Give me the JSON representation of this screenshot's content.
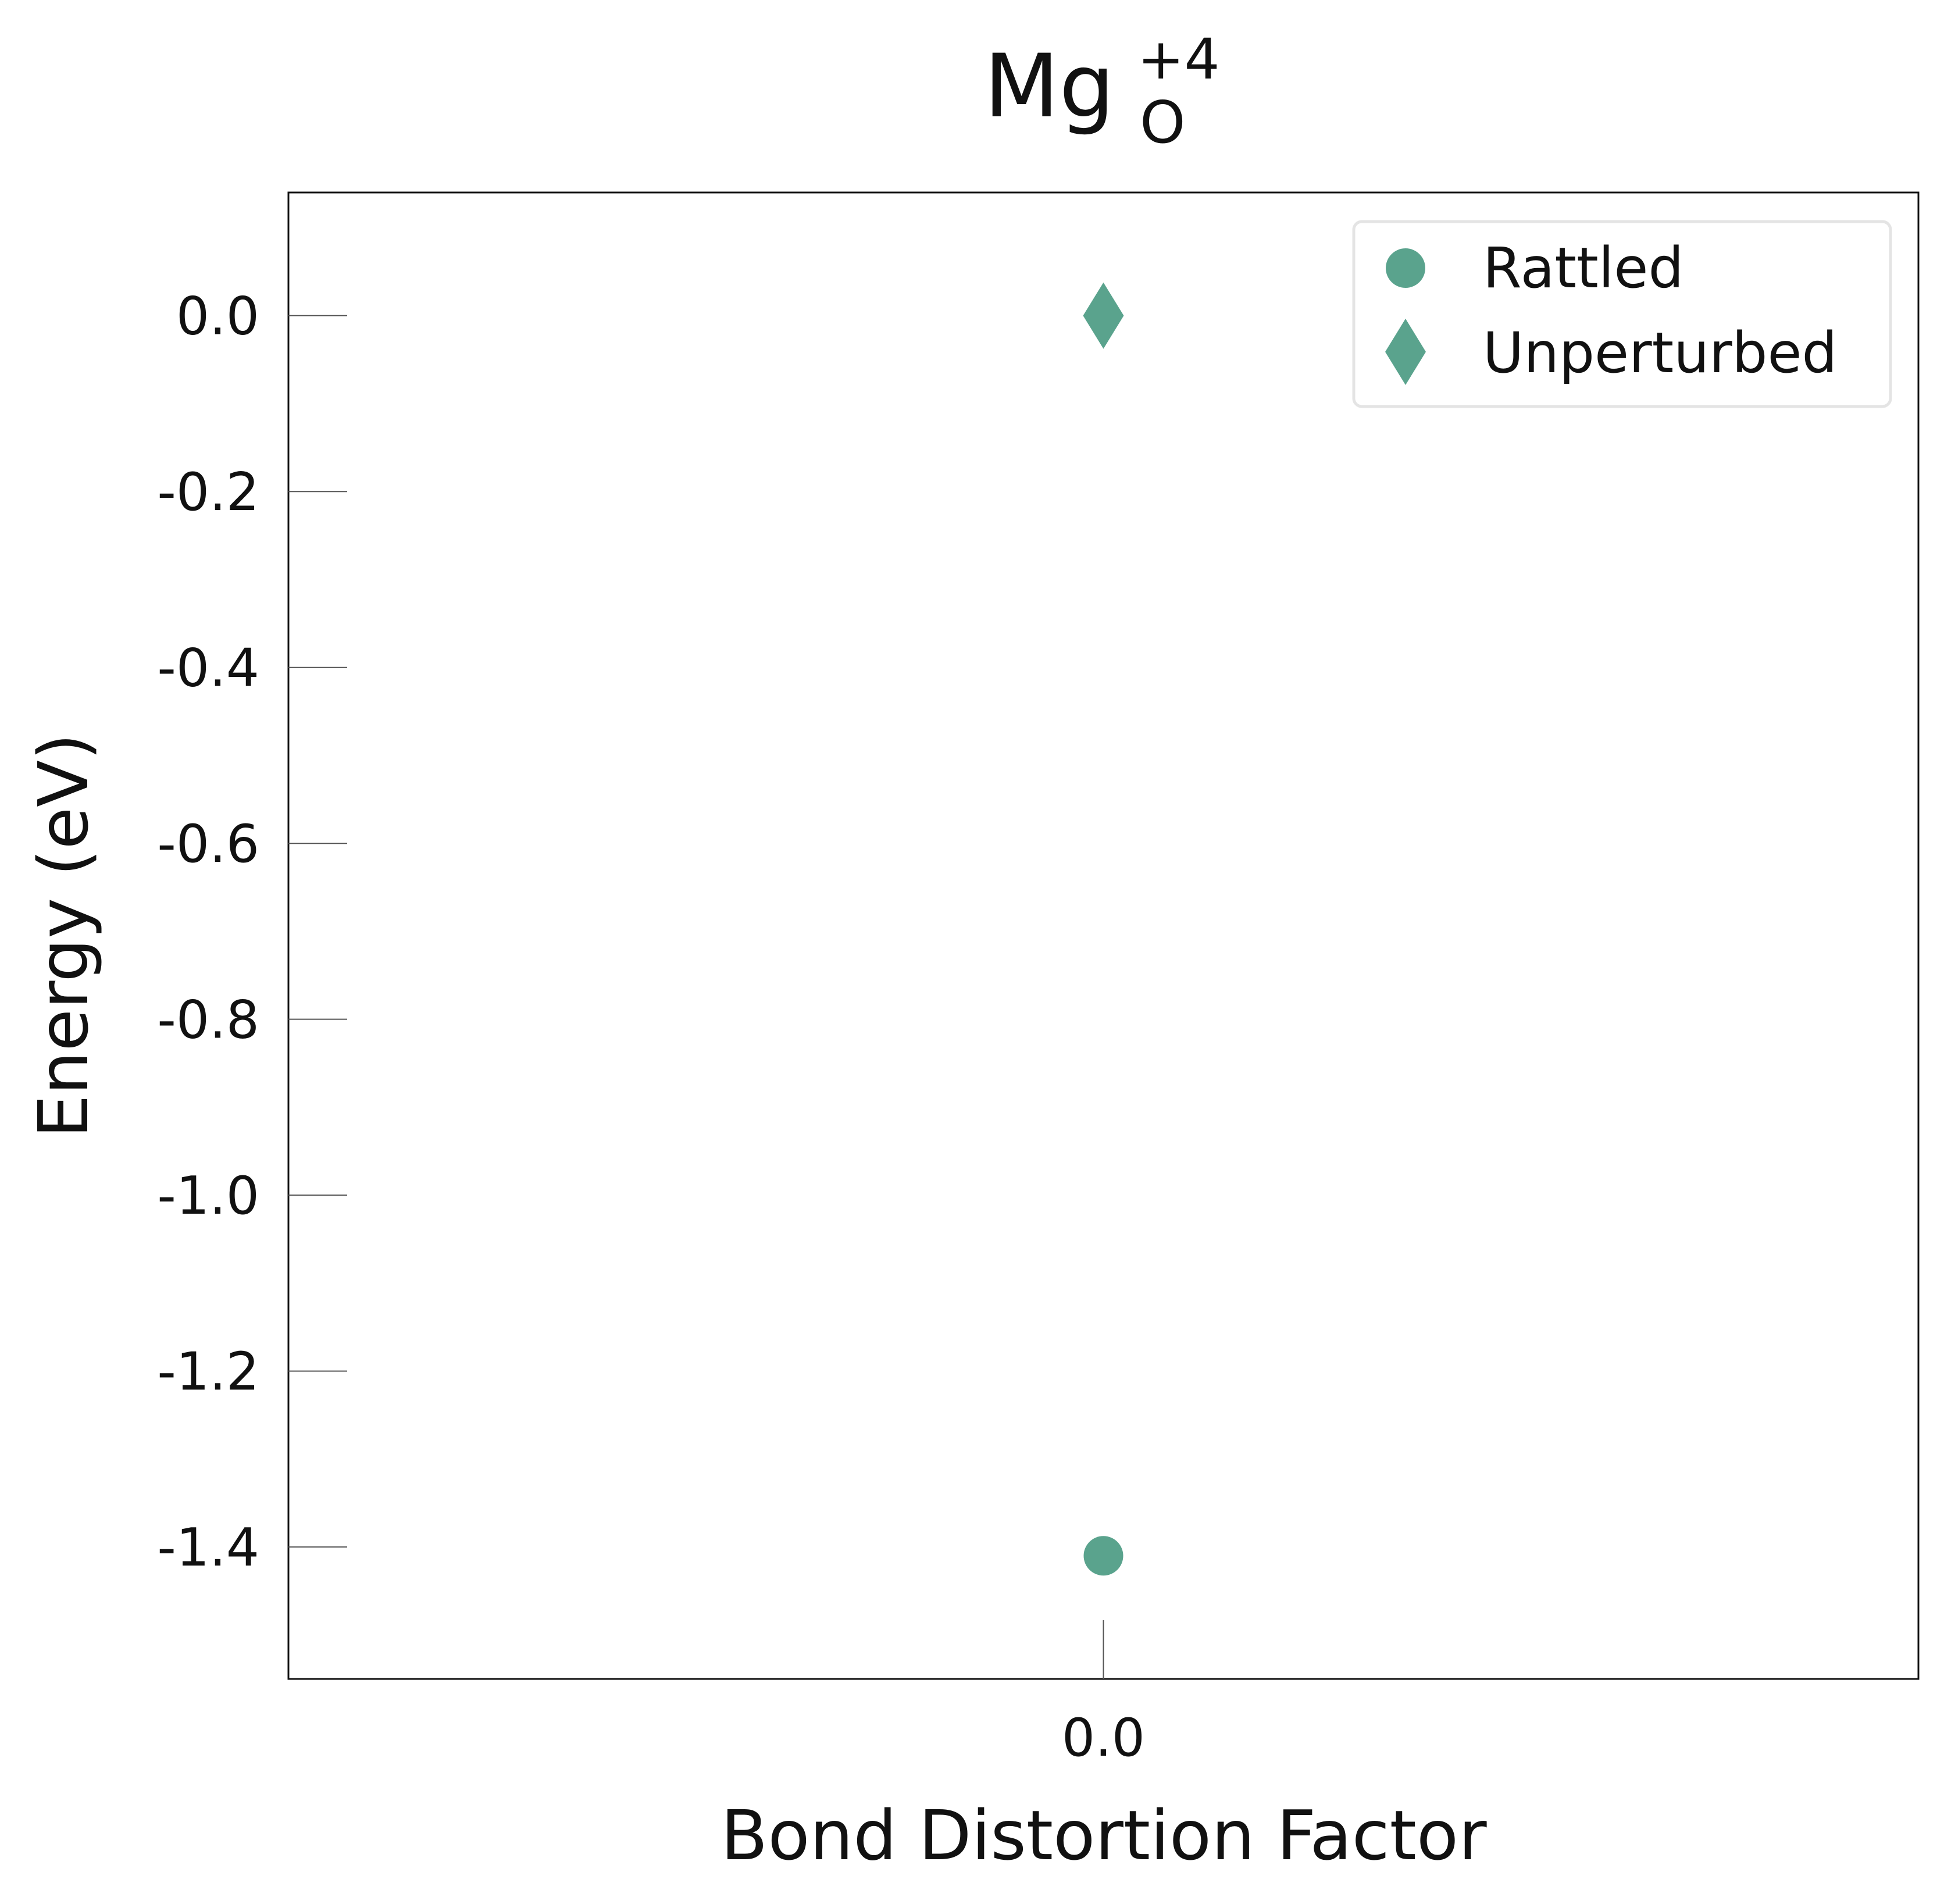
{
  "chart_data": {
    "type": "scatter",
    "title": "Mg",
    "title_subscript": "O",
    "title_superscript": "+4",
    "xlabel": "Bond Distortion Factor",
    "ylabel": "Energy (eV)",
    "xlim": [
      -1,
      1
    ],
    "ylim": [
      -1.55,
      0.14
    ],
    "x_ticks": [
      0.0
    ],
    "x_tick_labels": [
      "0.0"
    ],
    "y_ticks": [
      0.0,
      -0.2,
      -0.4,
      -0.6,
      -0.8,
      -1.0,
      -1.2,
      -1.4
    ],
    "y_tick_labels": [
      "0.0",
      "-0.2",
      "-0.4",
      "-0.6",
      "-0.8",
      "-1.0",
      "-1.2",
      "-1.4"
    ],
    "grid": false,
    "legend_position": "top-right",
    "series": [
      {
        "name": "Rattled",
        "marker": "circle",
        "color": "#5aa38d",
        "points": [
          {
            "x": 0.0,
            "y": -1.41
          }
        ]
      },
      {
        "name": "Unperturbed",
        "marker": "diamond",
        "color": "#5aa38d",
        "points": [
          {
            "x": 0.0,
            "y": 0.0
          }
        ]
      }
    ]
  }
}
